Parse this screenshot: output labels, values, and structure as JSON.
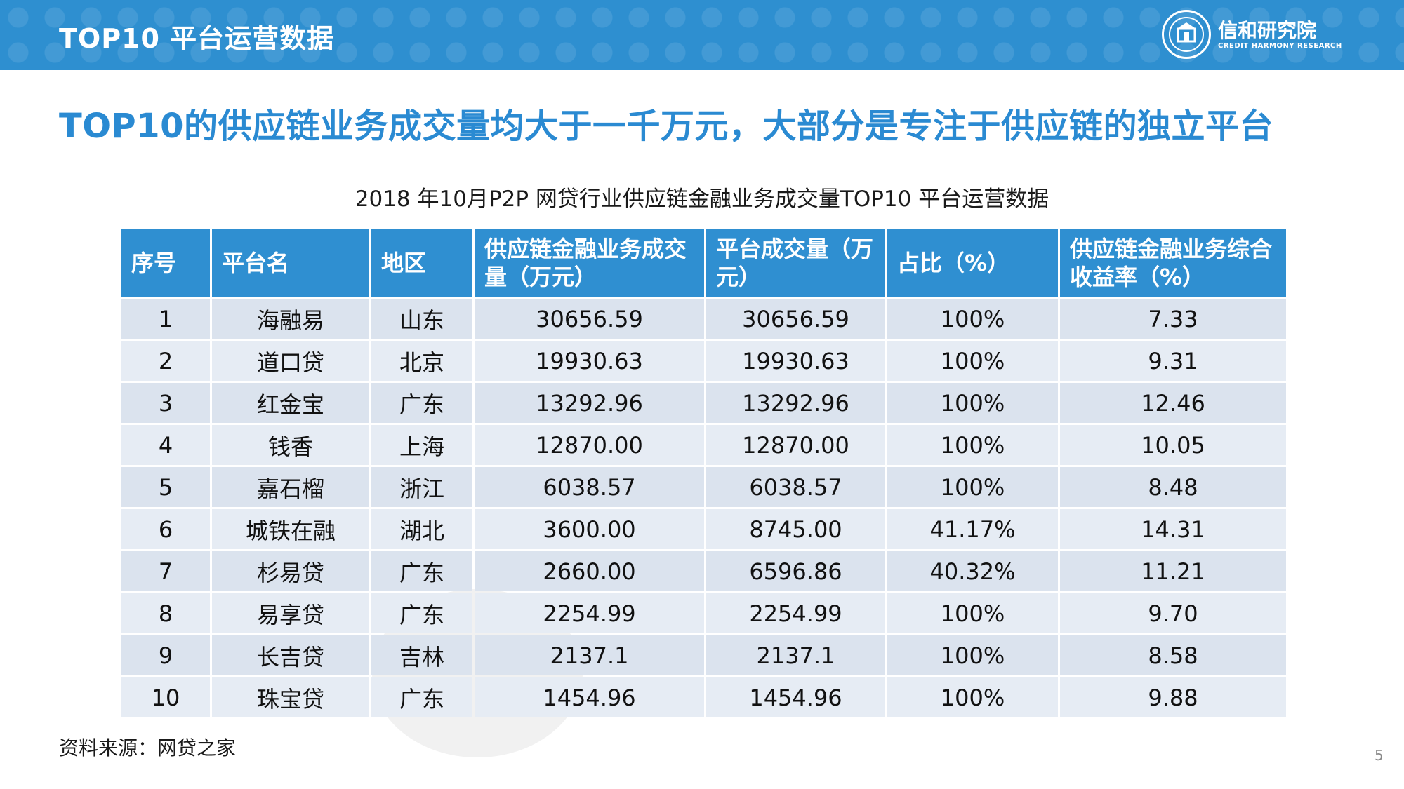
{
  "header": {
    "title": "TOP10 平台运营数据",
    "brand_name": "信和研究院",
    "brand_en": "CREDIT HARMONY RESEARCH",
    "accent_color": "#2e8fd0"
  },
  "headline": "TOP10的供应链业务成交量均大于一千万元，大部分是专注于供应链的独立平台",
  "table": {
    "caption": "2018 年10月P2P 网贷行业供应链金融业务成交量TOP10 平台运营数据",
    "columns": [
      "序号",
      "平台名",
      "地区",
      "供应链金融业务成交量（万元）",
      "平台成交量（万元）",
      "占比（%）",
      "供应链金融业务综合收益率（%）"
    ],
    "rows": [
      [
        "1",
        "海融易",
        "山东",
        "30656.59",
        "30656.59",
        "100%",
        "7.33"
      ],
      [
        "2",
        "道口贷",
        "北京",
        "19930.63",
        "19930.63",
        "100%",
        "9.31"
      ],
      [
        "3",
        "红金宝",
        "广东",
        "13292.96",
        "13292.96",
        "100%",
        "12.46"
      ],
      [
        "4",
        "钱香",
        "上海",
        "12870.00",
        "12870.00",
        "100%",
        "10.05"
      ],
      [
        "5",
        "嘉石榴",
        "浙江",
        "6038.57",
        "6038.57",
        "100%",
        "8.48"
      ],
      [
        "6",
        "城铁在融",
        "湖北",
        "3600.00",
        "8745.00",
        "41.17%",
        "14.31"
      ],
      [
        "7",
        "杉易贷",
        "广东",
        "2660.00",
        "6596.86",
        "40.32%",
        "11.21"
      ],
      [
        "8",
        "易享贷",
        "广东",
        "2254.99",
        "2254.99",
        "100%",
        "9.70"
      ],
      [
        "9",
        "长吉贷",
        "吉林",
        "2137.1",
        "2137.1",
        "100%",
        "8.58"
      ],
      [
        "10",
        "珠宝贷",
        "广东",
        "1454.96",
        "1454.96",
        "100%",
        "9.88"
      ]
    ]
  },
  "source": "资料来源：网贷之家",
  "page_number": "5"
}
